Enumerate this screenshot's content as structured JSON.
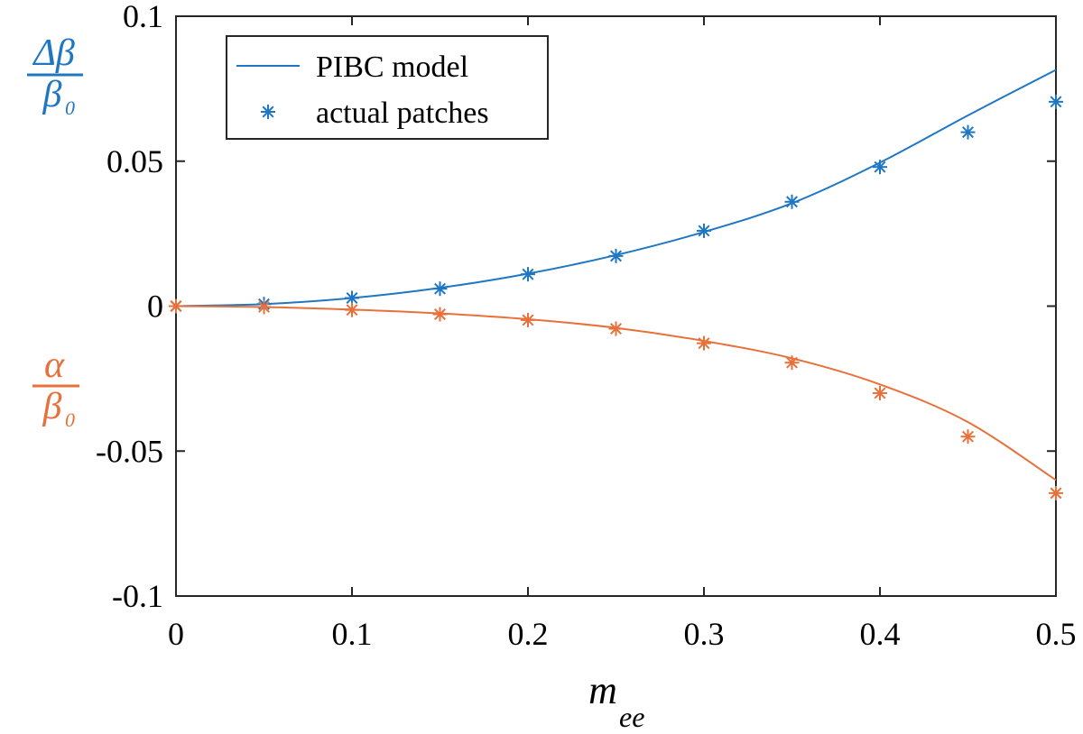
{
  "chart_data": {
    "type": "line",
    "xlabel": {
      "main": "m",
      "sub": "ee"
    },
    "ylabel_top": {
      "numerator": "Δβ",
      "denominator": "β",
      "denominator_sub": "0"
    },
    "ylabel_bottom": {
      "numerator": "α",
      "denominator": "β",
      "denominator_sub": "0"
    },
    "xlim": [
      0,
      0.5
    ],
    "ylim": [
      -0.1,
      0.1
    ],
    "x_ticks": [
      0,
      0.1,
      0.2,
      0.3,
      0.4,
      0.5
    ],
    "x_tick_labels": [
      "0",
      "0.1",
      "0.2",
      "0.3",
      "0.4",
      "0.5"
    ],
    "y_ticks": [
      -0.1,
      -0.05,
      0,
      0.05,
      0.1
    ],
    "y_tick_labels": [
      "-0.1",
      "-0.05",
      "0",
      "0.05",
      "0.1"
    ],
    "grid": false,
    "legend": {
      "placement": "top-left",
      "entries": [
        {
          "label": "PIBC model",
          "marker": "line"
        },
        {
          "label": "actual patches",
          "marker": "asterisk"
        }
      ]
    },
    "series": [
      {
        "name": "PIBC model (Δβ/β0)",
        "kind": "line",
        "color": "#1f77c4",
        "x": [
          0,
          0.05,
          0.1,
          0.15,
          0.2,
          0.25,
          0.3,
          0.35,
          0.4,
          0.45,
          0.5
        ],
        "y": [
          0,
          0.0007,
          0.0028,
          0.0063,
          0.0112,
          0.0176,
          0.0256,
          0.0355,
          0.0495,
          0.0658,
          0.0815
        ]
      },
      {
        "name": "actual patches (Δβ/β0)",
        "kind": "marker",
        "color": "#1f77c4",
        "x": [
          0,
          0.05,
          0.1,
          0.15,
          0.2,
          0.25,
          0.3,
          0.35,
          0.4,
          0.45,
          0.5
        ],
        "y": [
          0,
          0.0007,
          0.0028,
          0.006,
          0.011,
          0.0173,
          0.026,
          0.036,
          0.048,
          0.06,
          0.0705
        ]
      },
      {
        "name": "PIBC model (α/β0)",
        "kind": "line",
        "color": "#e8703a",
        "x": [
          0,
          0.05,
          0.1,
          0.15,
          0.2,
          0.25,
          0.3,
          0.35,
          0.4,
          0.45,
          0.5
        ],
        "y": [
          0,
          -0.0003,
          -0.0012,
          -0.0025,
          -0.0045,
          -0.0075,
          -0.012,
          -0.018,
          -0.027,
          -0.04,
          -0.06
        ]
      },
      {
        "name": "actual patches (α/β0)",
        "kind": "marker",
        "color": "#e8703a",
        "x": [
          0,
          0.05,
          0.1,
          0.15,
          0.2,
          0.25,
          0.3,
          0.35,
          0.4,
          0.45,
          0.5
        ],
        "y": [
          0,
          -0.0003,
          -0.0013,
          -0.0028,
          -0.0048,
          -0.0078,
          -0.0128,
          -0.0195,
          -0.03,
          -0.045,
          -0.0645
        ]
      }
    ]
  }
}
